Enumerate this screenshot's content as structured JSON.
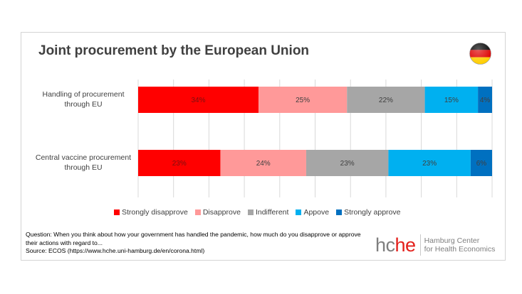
{
  "header": {
    "title": "Joint procurement by the European Union"
  },
  "chart_data": {
    "type": "bar",
    "orientation": "horizontal",
    "stacked": true,
    "normalized": true,
    "title": "Joint procurement by the European Union",
    "categories": [
      "Handling of procurement through EU",
      "Central vaccine procurement through EU"
    ],
    "category_lines": [
      [
        "Handling of procurement",
        "through EU"
      ],
      [
        "Central vaccine procurement",
        "through EU"
      ]
    ],
    "series": [
      {
        "name": "Strongly disapprove",
        "color": "#ff0000",
        "label_color": "#7a1010",
        "values": [
          34,
          23
        ]
      },
      {
        "name": "Disapprove",
        "color": "#ff9999",
        "label_color": "#404040",
        "values": [
          25,
          24
        ]
      },
      {
        "name": "Indifferent",
        "color": "#a6a6a6",
        "label_color": "#404040",
        "values": [
          22,
          23
        ]
      },
      {
        "name": "Appove",
        "color": "#00b0f0",
        "label_color": "#404040",
        "values": [
          15,
          23
        ]
      },
      {
        "name": "Strongly approve",
        "color": "#0070c0",
        "label_color": "#404040",
        "values": [
          4,
          6
        ]
      }
    ],
    "xlim": [
      0,
      100
    ],
    "grid": true,
    "legend_position": "bottom"
  },
  "footnote": {
    "question": "Question: When you think about how your government has handled the pandemic, how much do you disapprove or approve their actions with regard to...",
    "source": "Source: ECOS (https://www.hche.uni-hamburg.de/en/corona.html)"
  },
  "logo": {
    "mark_hc": "hc",
    "mark_he": "he",
    "line1": "Hamburg Center",
    "line2": "for Health Economics"
  },
  "flag": {
    "icon": "germany-flag-icon",
    "colors": [
      "#000000",
      "#dd0000",
      "#ffce00"
    ]
  }
}
